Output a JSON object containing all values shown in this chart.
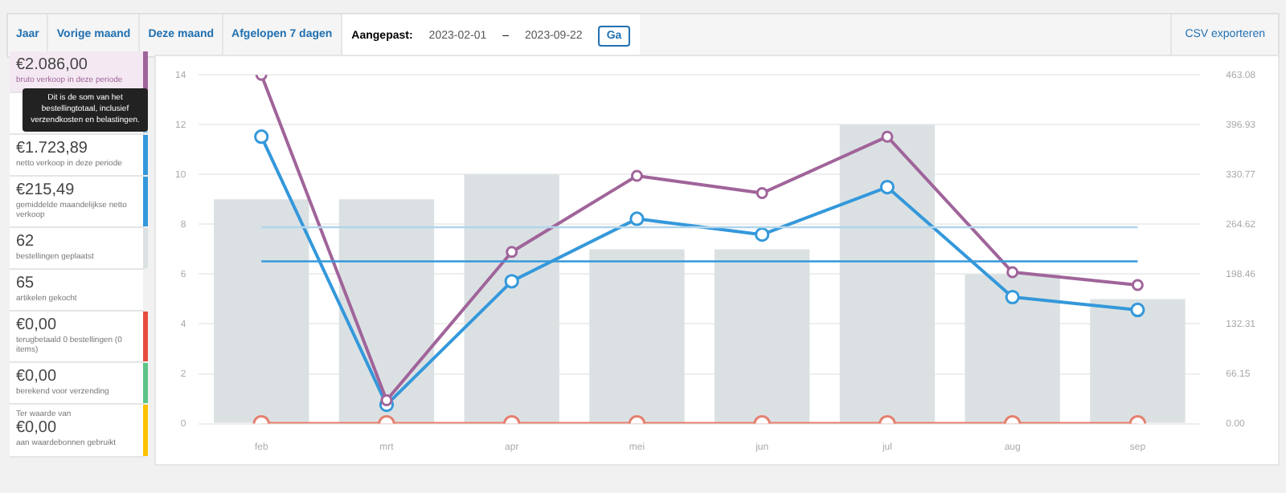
{
  "chart_data": [
    {
      "type": "other",
      "annotations": [
        "Jaar",
        "Vorige maand",
        "Deze maand",
        "Afgelopen 7 dagen",
        "Aangepast:",
        "2023-02-01",
        "–",
        "2023-09-22",
        "Ga",
        "CSV exporteren",
        "€2.086,00",
        "bruto verkoop in deze periode",
        "Dit is de som van het bestellingtotaal, inclusief verzendkosten en belastingen.",
        "€1.723,89",
        "netto verkoop in deze periode",
        "€215,49",
        "gemiddelde maandelijkse netto verkoop",
        "62",
        "bestellingen geplaatst",
        "65",
        "artikelen gekocht",
        "€0,00",
        "terugbetaald 0 bestellingen (0 items)",
        "€0,00",
        "berekend voor verzending",
        "Ter waarde van",
        "€0,00",
        "aan waardebonnen gebruikt"
      ]
    },
    {
      "type": "bar",
      "categories": [
        "feb",
        "mrt",
        "apr",
        "mei",
        "jun",
        "jul",
        "aug",
        "sep"
      ],
      "grid": "y",
      "legend": false,
      "marker": "circle",
      "line_style": "solid",
      "ylim": [
        0,
        14
      ],
      "yticks": [
        0,
        2,
        4,
        6,
        8,
        10,
        12,
        14
      ],
      "y2lim": [
        0,
        463.08
      ],
      "y2ticks": [
        {
          "value": 0,
          "label": "0.00"
        },
        {
          "value": 66.15,
          "label": "66.15"
        },
        {
          "value": 132.31,
          "label": "132.31"
        },
        {
          "value": 198.46,
          "label": "198.46"
        },
        {
          "value": 264.62,
          "label": "264.62"
        },
        {
          "value": 330.77,
          "label": "330.77"
        },
        {
          "value": 396.93,
          "label": "396.93"
        },
        {
          "value": 463.08,
          "label": "463.08"
        }
      ],
      "series": [
        {
          "type": "bar",
          "color": "#dbe1e3",
          "values": [
            9,
            9,
            10,
            7,
            7,
            12,
            6,
            5
          ]
        },
        {
          "type": "line",
          "axis": "y2",
          "color": "#e5806f",
          "values": [
            0,
            0,
            0,
            0,
            0,
            0,
            0,
            0
          ]
        },
        {
          "type": "line",
          "axis": "y2",
          "color": "#3498db",
          "values": [
            381,
            25,
            189,
            272,
            251,
            314,
            168,
            151
          ]
        },
        {
          "type": "line",
          "axis": "y2",
          "color": "#a0649a",
          "values": [
            463,
            31,
            228,
            329,
            306,
            381,
            201,
            184
          ]
        }
      ],
      "ref_lines": [
        {
          "axis": "y2",
          "value": 260.75,
          "color": "#b1d4ea"
        },
        {
          "axis": "y2",
          "value": 215.49,
          "color": "#3498db"
        }
      ]
    }
  ]
}
